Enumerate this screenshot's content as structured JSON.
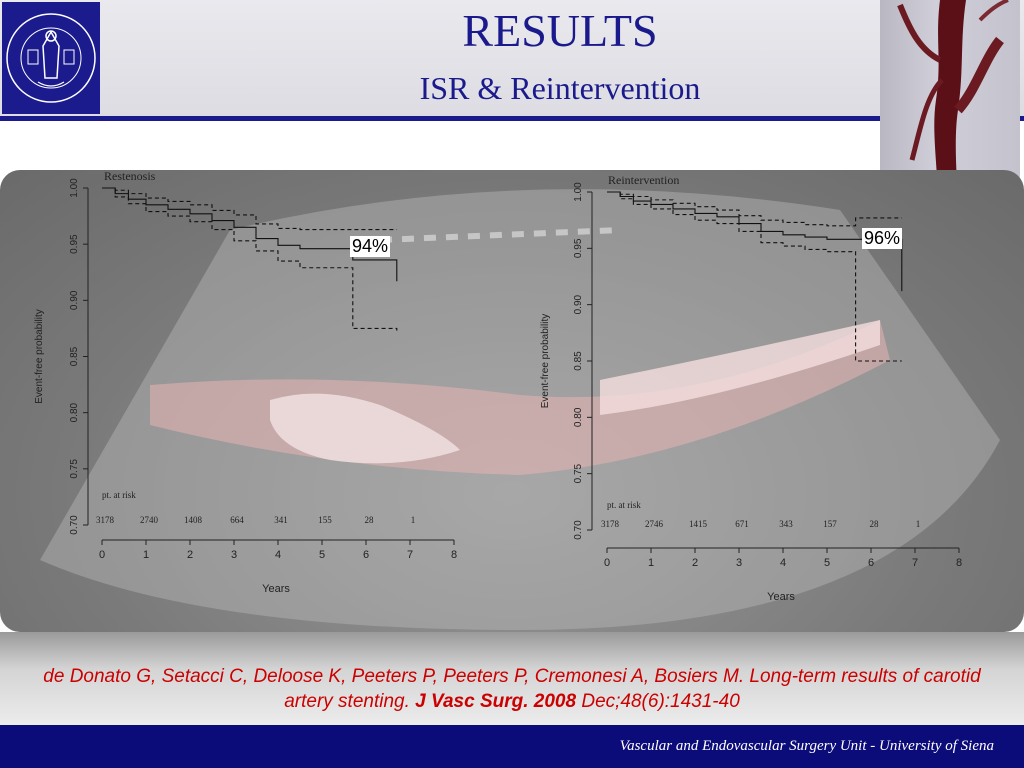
{
  "slide": {
    "title": "RESULTS",
    "subtitle": "ISR & Reintervention",
    "logo_text": "UNIVERSITATIS SENARUM",
    "reference_italic": "de Donato G, Setacci C, Deloose K, Peeters P, Peeters P, Cremonesi A, Bosiers M. Long-term results of carotid artery stenting.",
    "reference_journal": "J Vasc Surg. 2008",
    "reference_tail": "Dec;48(6):1431-40",
    "footer": "Vascular and Endovascular Surgery Unit - University of Siena"
  },
  "chart_data": [
    {
      "type": "line",
      "title": "Restenosis",
      "xlabel": "Years",
      "ylabel": "Event-free probability",
      "xlim": [
        0,
        8
      ],
      "ylim": [
        0.7,
        1.0
      ],
      "xticks": [
        "0",
        "1",
        "2",
        "3",
        "4",
        "5",
        "6",
        "7",
        "8"
      ],
      "yticks": [
        "0.70",
        "0.75",
        "0.80",
        "0.85",
        "0.90",
        "0.95",
        "1.00"
      ],
      "risk_label": "pt. at risk",
      "at_risk": [
        "3178",
        "2740",
        "1408",
        "664",
        "341",
        "155",
        "28",
        "1"
      ],
      "annotation": "94%",
      "series": [
        {
          "x": [
            0,
            0.3,
            0.6,
            1.0,
            1.5,
            2.0,
            2.5,
            3.0,
            3.5,
            4.0,
            4.5,
            5.0,
            5.7,
            6.7
          ],
          "y": [
            1.0,
            0.995,
            0.99,
            0.985,
            0.981,
            0.977,
            0.971,
            0.965,
            0.955,
            0.949,
            0.946,
            0.946,
            0.936,
            0.917
          ]
        },
        {
          "x": [
            0,
            0.3,
            0.6,
            1.0,
            1.5,
            2.0,
            2.5,
            3.0,
            3.5,
            4.0,
            4.5,
            5.0,
            5.7,
            6.7
          ],
          "y": [
            1.0,
            0.998,
            0.995,
            0.991,
            0.988,
            0.985,
            0.98,
            0.976,
            0.968,
            0.964,
            0.963,
            0.963,
            0.963,
            0.963
          ]
        },
        {
          "x": [
            0,
            0.3,
            0.6,
            1.0,
            1.5,
            2.0,
            2.5,
            3.0,
            3.5,
            4.0,
            4.5,
            5.0,
            5.7,
            6.7
          ],
          "y": [
            1.0,
            0.992,
            0.986,
            0.979,
            0.975,
            0.97,
            0.963,
            0.953,
            0.944,
            0.935,
            0.929,
            0.929,
            0.875,
            0.873
          ]
        }
      ]
    },
    {
      "type": "line",
      "title": "Reintervention",
      "xlabel": "Years",
      "ylabel": "Event-free probability",
      "xlim": [
        0,
        8
      ],
      "ylim": [
        0.7,
        1.0
      ],
      "xticks": [
        "0",
        "1",
        "2",
        "3",
        "4",
        "5",
        "6",
        "7",
        "8"
      ],
      "yticks": [
        "0.70",
        "0.75",
        "0.80",
        "0.85",
        "0.90",
        "0.95",
        "1.00"
      ],
      "risk_label": "pt. at risk",
      "at_risk": [
        "3178",
        "2746",
        "1415",
        "671",
        "343",
        "157",
        "28",
        "1"
      ],
      "annotation": "96%",
      "series": [
        {
          "x": [
            0,
            0.3,
            0.6,
            1.0,
            1.5,
            2.0,
            2.5,
            3.0,
            3.5,
            4.0,
            4.5,
            5.0,
            5.65,
            6.7
          ],
          "y": [
            1.0,
            0.996,
            0.992,
            0.989,
            0.985,
            0.981,
            0.978,
            0.972,
            0.965,
            0.962,
            0.96,
            0.958,
            0.958,
            0.912
          ]
        },
        {
          "x": [
            0,
            0.3,
            0.6,
            1.0,
            1.5,
            2.0,
            2.5,
            3.0,
            3.5,
            4.0,
            4.5,
            5.0,
            5.65,
            6.7
          ],
          "y": [
            1.0,
            0.998,
            0.996,
            0.993,
            0.99,
            0.987,
            0.984,
            0.979,
            0.975,
            0.973,
            0.971,
            0.97,
            0.977,
            0.977
          ]
        },
        {
          "x": [
            0,
            0.3,
            0.6,
            1.0,
            1.5,
            2.0,
            2.5,
            3.0,
            3.5,
            4.0,
            4.5,
            5.0,
            5.65,
            6.7
          ],
          "y": [
            1.0,
            0.994,
            0.989,
            0.985,
            0.98,
            0.975,
            0.972,
            0.965,
            0.955,
            0.952,
            0.949,
            0.947,
            0.85,
            0.85
          ]
        }
      ]
    }
  ]
}
